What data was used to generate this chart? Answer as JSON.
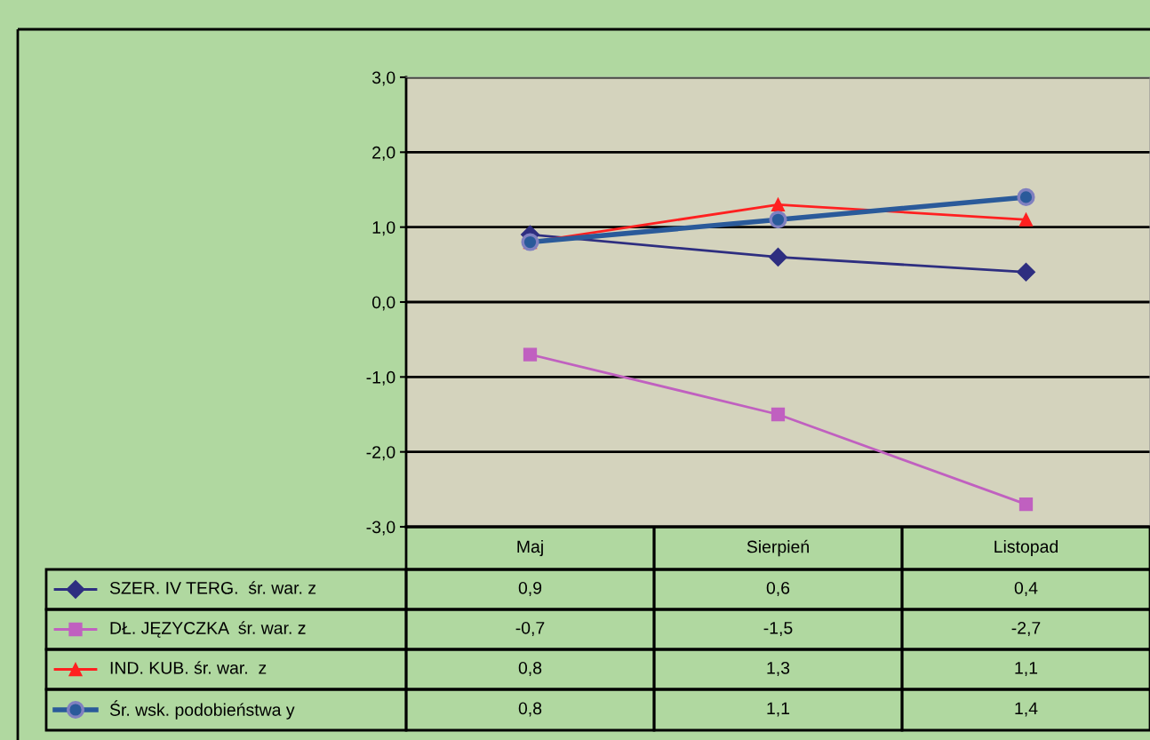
{
  "chart_data": {
    "type": "line",
    "categories": [
      "Maj",
      "Sierpień",
      "Listopad"
    ],
    "series": [
      {
        "name": "SZER. IV TERG.  śr. war. z",
        "color": "#2e2e80",
        "marker": "diamond",
        "values": [
          0.9,
          0.6,
          0.4
        ],
        "value_labels": [
          "0,9",
          "0,6",
          "0,4"
        ]
      },
      {
        "name": "DŁ. JĘZYCZKA  śr. war. z",
        "color": "#c060c0",
        "marker": "square",
        "values": [
          -0.7,
          -1.5,
          -2.7
        ],
        "value_labels": [
          "-0,7",
          "-1,5",
          "-2,7"
        ]
      },
      {
        "name": "IND. KUB. śr. war.  z",
        "color": "#ff2020",
        "marker": "triangle",
        "values": [
          0.8,
          1.3,
          1.1
        ],
        "value_labels": [
          "0,8",
          "1,3",
          "1,1"
        ]
      },
      {
        "name": "Śr. wsk. podobieństwa y",
        "color": "#2a5a9a",
        "marker": "circle",
        "values": [
          0.8,
          1.1,
          1.4
        ],
        "value_labels": [
          "0,8",
          "1,1",
          "1,4"
        ]
      }
    ],
    "ylim": [
      -3,
      3
    ],
    "yticks": [
      {
        "value": -3,
        "label": "-3,0"
      },
      {
        "value": -2,
        "label": "-2,0"
      },
      {
        "value": -1,
        "label": "-1,0"
      },
      {
        "value": 0,
        "label": "0,0"
      },
      {
        "value": 1,
        "label": "1,0"
      },
      {
        "value": 2,
        "label": "2,0"
      },
      {
        "value": 3,
        "label": "3,0"
      }
    ],
    "grid": "y",
    "legend": "bottom"
  }
}
